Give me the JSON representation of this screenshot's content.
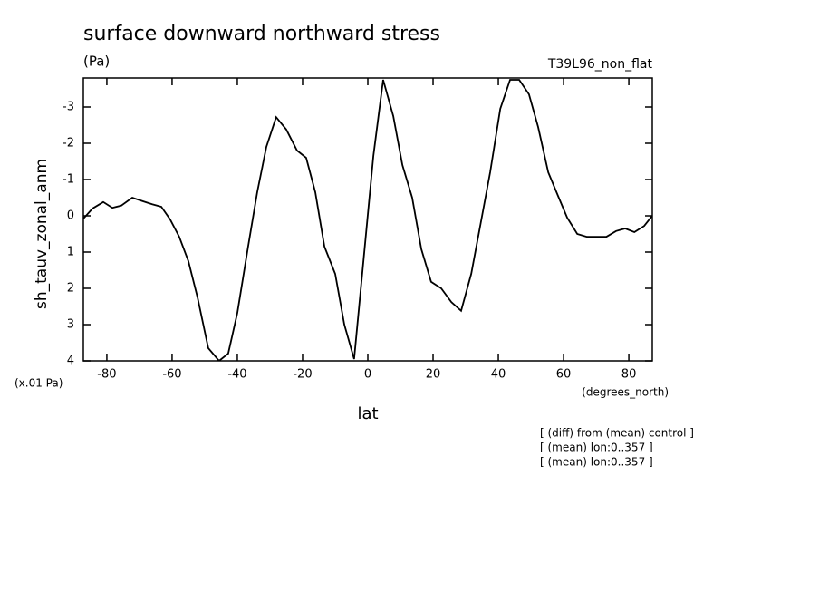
{
  "chart_data": {
    "type": "line",
    "title": "surface downward northward stress",
    "subtitle": "(Pa)",
    "annotation_right": "T39L96_non_flat",
    "y_label": "sh_tauv_zonal_anm",
    "y_unit": "(x.01 Pa)",
    "x_label": "lat",
    "x_unit": "(degrees_north)",
    "notes": [
      "[ (diff) from (mean) control ]",
      "[ (mean) lon:0..357 ]",
      "[ (mean) lon:0..357 ]"
    ],
    "xlim": [
      -87.2,
      87.2
    ],
    "xticks": [
      -80,
      -60,
      -40,
      -20,
      0,
      20,
      40,
      60,
      80
    ],
    "ylim": [
      4,
      -3.8
    ],
    "yticks": [
      -3,
      -2,
      -1,
      0,
      1,
      2,
      3,
      4
    ],
    "series": [
      {
        "color": "#000000",
        "x": [
          -87.2,
          -84.4,
          -81.1,
          -78.3,
          -75.6,
          -72.2,
          -68.9,
          -66.1,
          -63.3,
          -60.6,
          -57.8,
          -55.0,
          -52.2,
          -48.9,
          -45.6,
          -42.8,
          -40.0,
          -36.7,
          -33.9,
          -31.1,
          -28.1,
          -25.0,
          -21.7,
          -18.9,
          -16.1,
          -13.3,
          -10.0,
          -7.2,
          -4.2,
          -1.4,
          1.7,
          4.7,
          7.8,
          10.6,
          13.6,
          16.4,
          19.4,
          22.5,
          25.6,
          28.6,
          31.7,
          34.4,
          37.5,
          40.6,
          43.6,
          46.4,
          49.4,
          52.2,
          55.3,
          58.3,
          61.1,
          64.2,
          67.2,
          70.0,
          73.1,
          76.1,
          78.9,
          81.7,
          84.7,
          87.2
        ],
        "values": [
          0.08,
          -0.2,
          -0.38,
          -0.22,
          -0.28,
          -0.5,
          -0.4,
          -0.32,
          -0.25,
          0.1,
          0.58,
          1.25,
          2.25,
          3.65,
          4.0,
          3.8,
          2.68,
          0.85,
          -0.65,
          -1.9,
          -2.72,
          -2.38,
          -1.8,
          -1.6,
          -0.65,
          0.85,
          1.6,
          3.0,
          3.95,
          1.3,
          -1.65,
          -3.75,
          -2.75,
          -1.4,
          -0.5,
          0.92,
          1.82,
          2.0,
          2.38,
          2.62,
          1.6,
          0.3,
          -1.2,
          -2.95,
          -3.75,
          -3.75,
          -3.35,
          -2.45,
          -1.2,
          -0.55,
          0.05,
          0.5,
          0.58,
          0.58,
          0.58,
          0.42,
          0.35,
          0.45,
          0.28,
          0
        ]
      }
    ]
  }
}
